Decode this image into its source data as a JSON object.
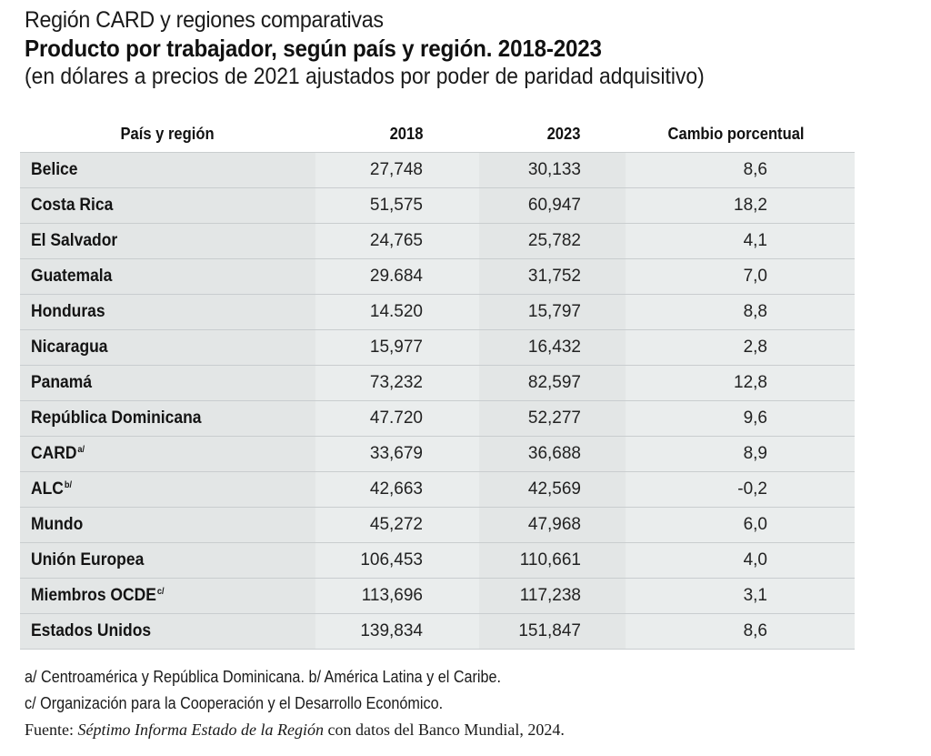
{
  "header": {
    "kicker": "Región CARD y regiones comparativas",
    "title": "Producto por trabajador, según país y región. 2018-2023",
    "subtitle": "(en dólares a precios de 2021 ajustados por poder de paridad adquisitivo)"
  },
  "table": {
    "columns": [
      "País y región",
      "2018",
      "2023",
      "Cambio porcentual"
    ],
    "rows": [
      {
        "name": "Belice",
        "note": "",
        "v2018": "27,748",
        "v2023": "30,133",
        "pct": "8,6"
      },
      {
        "name": "Costa Rica",
        "note": "",
        "v2018": "51,575",
        "v2023": "60,947",
        "pct": "18,2"
      },
      {
        "name": "El Salvador",
        "note": "",
        "v2018": "24,765",
        "v2023": "25,782",
        "pct": "4,1"
      },
      {
        "name": "Guatemala",
        "note": "",
        "v2018": "29.684",
        "v2023": "31,752",
        "pct": "7,0"
      },
      {
        "name": "Honduras",
        "note": "",
        "v2018": "14.520",
        "v2023": "15,797",
        "pct": "8,8"
      },
      {
        "name": "Nicaragua",
        "note": "",
        "v2018": "15,977",
        "v2023": "16,432",
        "pct": "2,8"
      },
      {
        "name": "Panamá",
        "note": "",
        "v2018": "73,232",
        "v2023": "82,597",
        "pct": "12,8"
      },
      {
        "name": "República Dominicana",
        "note": "",
        "v2018": "47.720",
        "v2023": "52,277",
        "pct": "9,6"
      },
      {
        "name": "CARD",
        "note": "a/",
        "v2018": "33,679",
        "v2023": "36,688",
        "pct": "8,9"
      },
      {
        "name": "ALC",
        "note": "b/",
        "v2018": "42,663",
        "v2023": "42,569",
        "pct": "-0,2"
      },
      {
        "name": "Mundo",
        "note": "",
        "v2018": "45,272",
        "v2023": "47,968",
        "pct": "6,0"
      },
      {
        "name": "Unión Europea",
        "note": "",
        "v2018": "106,453",
        "v2023": "110,661",
        "pct": "4,0"
      },
      {
        "name": "Miembros OCDE",
        "note": "c/",
        "v2018": "113,696",
        "v2023": "117,238",
        "pct": "3,1"
      },
      {
        "name": "Estados Unidos",
        "note": "",
        "v2018": "139,834",
        "v2023": "151,847",
        "pct": "8,6"
      }
    ]
  },
  "notes": {
    "line1": "a/ Centroamérica y República Dominicana. b/ América Latina y el Caribe.",
    "line2": "c/ Organización para la Cooperación y el Desarrollo Económico.",
    "source_prefix": "Fuente: ",
    "source_title": "Séptimo Informa Estado de la Región",
    "source_suffix": " con datos del Banco Mundial, 2024."
  },
  "colors": {
    "shade_dark": "#e3e6e6",
    "shade_light": "#eaeded",
    "row_rule": "#c9cdcf"
  }
}
